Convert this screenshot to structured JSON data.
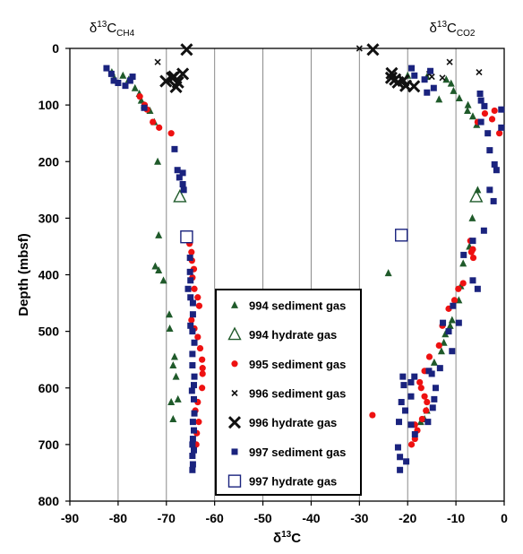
{
  "chart_data": {
    "type": "scatter",
    "title": "",
    "column_titles": [
      {
        "delta": "δ",
        "sup": "13",
        "main": "C",
        "sub": "CH4"
      },
      {
        "delta": "δ",
        "sup": "13",
        "main": "C",
        "sub": "CO2"
      }
    ],
    "xlabel": {
      "delta": "δ",
      "sup": "13",
      "main": "C"
    },
    "ylabel": "Depth (mbsf)",
    "xlim": [
      -90,
      0
    ],
    "ylim": [
      800,
      0
    ],
    "xticks": [
      "-90",
      "-80",
      "-70",
      "-60",
      "-50",
      "-40",
      "-30",
      "-20",
      "-10",
      "0"
    ],
    "yticks": [
      "0",
      "100",
      "200",
      "300",
      "400",
      "500",
      "600",
      "700",
      "800"
    ],
    "grid": "vertical",
    "legend_placement": "center",
    "series": [
      {
        "name": "994 sediment gas",
        "marker": "filled-triangle",
        "color": "#1f5a2a",
        "points": [
          [
            -81.3,
            42
          ],
          [
            -80.8,
            52
          ],
          [
            -79,
            48
          ],
          [
            -77.8,
            55
          ],
          [
            -76.5,
            70
          ],
          [
            -75.6,
            80
          ],
          [
            -75.2,
            92
          ],
          [
            -74.6,
            100
          ],
          [
            -73.4,
            110
          ],
          [
            -72.5,
            130
          ],
          [
            -71.8,
            200
          ],
          [
            -71.6,
            330
          ],
          [
            -72.3,
            385
          ],
          [
            -71.6,
            392
          ],
          [
            -70.6,
            410
          ],
          [
            -69.4,
            470
          ],
          [
            -69.3,
            495
          ],
          [
            -68.6,
            560
          ],
          [
            -68.3,
            545
          ],
          [
            -68,
            580
          ],
          [
            -67.6,
            620
          ],
          [
            -69,
            625
          ],
          [
            -68.6,
            655
          ],
          [
            -20,
            48
          ],
          [
            -16,
            50
          ],
          [
            -12,
            55
          ],
          [
            -11,
            62
          ],
          [
            -10.5,
            75
          ],
          [
            -13.5,
            90
          ],
          [
            -9.3,
            88
          ],
          [
            -7.5,
            100
          ],
          [
            -7.6,
            110
          ],
          [
            -6.5,
            120
          ],
          [
            -5.7,
            135
          ],
          [
            -5.5,
            250
          ],
          [
            -6.6,
            300
          ],
          [
            -7.2,
            350
          ],
          [
            -8.5,
            380
          ],
          [
            -24,
            397
          ],
          [
            -9,
            420
          ],
          [
            -9.4,
            445
          ],
          [
            -10.8,
            480
          ],
          [
            -11.2,
            490
          ],
          [
            -12.2,
            505
          ],
          [
            -12.5,
            520
          ],
          [
            -13,
            535
          ],
          [
            -14.5,
            555
          ],
          [
            -16,
            640
          ],
          [
            -16.5,
            655
          ],
          [
            -17.3,
            660
          ]
        ]
      },
      {
        "name": "994 hydrate gas",
        "marker": "open-triangle",
        "color": "#1f5a2a",
        "points": [
          [
            -67.2,
            262
          ],
          [
            -5.8,
            262
          ]
        ]
      },
      {
        "name": "995 sediment gas",
        "marker": "filled-circle",
        "color": "#ee1111",
        "points": [
          [
            -75.5,
            85
          ],
          [
            -74.5,
            100
          ],
          [
            -74,
            108
          ],
          [
            -72.8,
            130
          ],
          [
            -71.5,
            140
          ],
          [
            -69,
            150
          ],
          [
            -65.5,
            335
          ],
          [
            -65.2,
            345
          ],
          [
            -64.8,
            360
          ],
          [
            -64.7,
            375
          ],
          [
            -64.3,
            390
          ],
          [
            -64.6,
            405
          ],
          [
            -64.2,
            425
          ],
          [
            -63.5,
            440
          ],
          [
            -63.2,
            455
          ],
          [
            -64.8,
            480
          ],
          [
            -64.2,
            495
          ],
          [
            -63.5,
            510
          ],
          [
            -63,
            530
          ],
          [
            -62.6,
            550
          ],
          [
            -62.5,
            565
          ],
          [
            -62.5,
            575
          ],
          [
            -62.6,
            600
          ],
          [
            -63.5,
            625
          ],
          [
            -64,
            640
          ],
          [
            -63.3,
            660
          ],
          [
            -63.7,
            680
          ],
          [
            -63.8,
            700
          ],
          [
            -2,
            110
          ],
          [
            -4,
            115
          ],
          [
            -2.5,
            125
          ],
          [
            -5.5,
            130
          ],
          [
            -1,
            150
          ],
          [
            -7,
            340
          ],
          [
            -6.5,
            355
          ],
          [
            -6.8,
            360
          ],
          [
            -6.4,
            370
          ],
          [
            -8.5,
            415
          ],
          [
            -9.5,
            425
          ],
          [
            -10.3,
            445
          ],
          [
            -11.5,
            460
          ],
          [
            -12.8,
            490
          ],
          [
            -13.5,
            525
          ],
          [
            -15.5,
            545
          ],
          [
            -16.5,
            570
          ],
          [
            -17.5,
            590
          ],
          [
            -17.2,
            600
          ],
          [
            -16.5,
            615
          ],
          [
            -16,
            625
          ],
          [
            -16.2,
            640
          ],
          [
            -17,
            655
          ],
          [
            -18.5,
            665
          ],
          [
            -18,
            675
          ],
          [
            -18.5,
            690
          ],
          [
            -19.2,
            700
          ],
          [
            -27.3,
            648
          ]
        ]
      },
      {
        "name": "996 sediment gas",
        "marker": "x-small",
        "color": "#111111",
        "points": [
          [
            -71.8,
            24
          ],
          [
            -30,
            0
          ],
          [
            -15.5,
            45
          ],
          [
            -15,
            50
          ],
          [
            -12.8,
            52
          ],
          [
            -11.3,
            24
          ],
          [
            -5.2,
            42
          ]
        ]
      },
      {
        "name": "996 hydrate gas",
        "marker": "x-large",
        "color": "#111111",
        "points": [
          [
            -65.8,
            2
          ],
          [
            -68.8,
            52
          ],
          [
            -70.1,
            58
          ],
          [
            -68,
            68
          ],
          [
            -67.6,
            60
          ],
          [
            -66.6,
            45
          ],
          [
            -68.4,
            50
          ],
          [
            -27.2,
            2
          ],
          [
            -23.3,
            44
          ],
          [
            -23.4,
            52
          ],
          [
            -22.6,
            55
          ],
          [
            -20.9,
            57
          ],
          [
            -18.7,
            67
          ],
          [
            -20.4,
            66
          ],
          [
            -22,
            60
          ]
        ]
      },
      {
        "name": "997 sediment gas",
        "marker": "filled-square",
        "color": "#1a237e",
        "points": [
          [
            -82.4,
            35
          ],
          [
            -81.4,
            45
          ],
          [
            -80.9,
            57
          ],
          [
            -80,
            61
          ],
          [
            -78.5,
            66
          ],
          [
            -77.5,
            57
          ],
          [
            -77,
            50
          ],
          [
            -74.6,
            105
          ],
          [
            -68.3,
            178
          ],
          [
            -67.7,
            215
          ],
          [
            -66.6,
            220
          ],
          [
            -67.3,
            228
          ],
          [
            -66.6,
            240
          ],
          [
            -66.4,
            250
          ],
          [
            -65.6,
            330
          ],
          [
            -65.1,
            370
          ],
          [
            -65.1,
            395
          ],
          [
            -65,
            410
          ],
          [
            -65.5,
            425
          ],
          [
            -65,
            440
          ],
          [
            -64.5,
            450
          ],
          [
            -64.5,
            470
          ],
          [
            -65,
            490
          ],
          [
            -64.6,
            500
          ],
          [
            -64.2,
            520
          ],
          [
            -64.6,
            540
          ],
          [
            -64.6,
            560
          ],
          [
            -64.2,
            580
          ],
          [
            -64.3,
            595
          ],
          [
            -64.7,
            605
          ],
          [
            -64.3,
            620
          ],
          [
            -64.2,
            645
          ],
          [
            -64.5,
            660
          ],
          [
            -64.3,
            675
          ],
          [
            -64.5,
            690
          ],
          [
            -64.6,
            700
          ],
          [
            -64.3,
            710
          ],
          [
            -64.6,
            720
          ],
          [
            -64.5,
            735
          ],
          [
            -64.6,
            745
          ],
          [
            -19.2,
            35
          ],
          [
            -18.6,
            48
          ],
          [
            -15.3,
            40
          ],
          [
            -16.5,
            55
          ],
          [
            -14.6,
            70
          ],
          [
            -16,
            78
          ],
          [
            -5,
            80
          ],
          [
            -4.8,
            92
          ],
          [
            -4.1,
            102
          ],
          [
            -0.6,
            108
          ],
          [
            -4.8,
            130
          ],
          [
            -0.6,
            140
          ],
          [
            -3.4,
            150
          ],
          [
            -3,
            180
          ],
          [
            -2,
            205
          ],
          [
            -1.6,
            215
          ],
          [
            -3,
            250
          ],
          [
            -2.2,
            270
          ],
          [
            -4.2,
            322
          ],
          [
            -6.5,
            340
          ],
          [
            -8.4,
            365
          ],
          [
            -6.5,
            410
          ],
          [
            -5.5,
            425
          ],
          [
            -10.6,
            455
          ],
          [
            -12.7,
            485
          ],
          [
            -9.4,
            485
          ],
          [
            -11.5,
            500
          ],
          [
            -10.8,
            535
          ],
          [
            -13.3,
            565
          ],
          [
            -15.6,
            570
          ],
          [
            -18.6,
            580
          ],
          [
            -19.3,
            590
          ],
          [
            -21,
            580
          ],
          [
            -20.8,
            595
          ],
          [
            -19.3,
            615
          ],
          [
            -21.3,
            625
          ],
          [
            -20.5,
            640
          ],
          [
            -21.8,
            660
          ],
          [
            -19.3,
            665
          ],
          [
            -18.5,
            682
          ],
          [
            -22,
            705
          ],
          [
            -21.6,
            722
          ],
          [
            -20.3,
            730
          ],
          [
            -21.6,
            745
          ],
          [
            -15,
            575
          ],
          [
            -14.2,
            600
          ],
          [
            -14.5,
            620
          ],
          [
            -14.8,
            635
          ],
          [
            -15.8,
            660
          ]
        ]
      },
      {
        "name": "997 hydrate gas",
        "marker": "open-square",
        "color": "#1a237e",
        "points": [
          [
            -65.8,
            333
          ],
          [
            -21.3,
            330
          ]
        ]
      }
    ]
  }
}
